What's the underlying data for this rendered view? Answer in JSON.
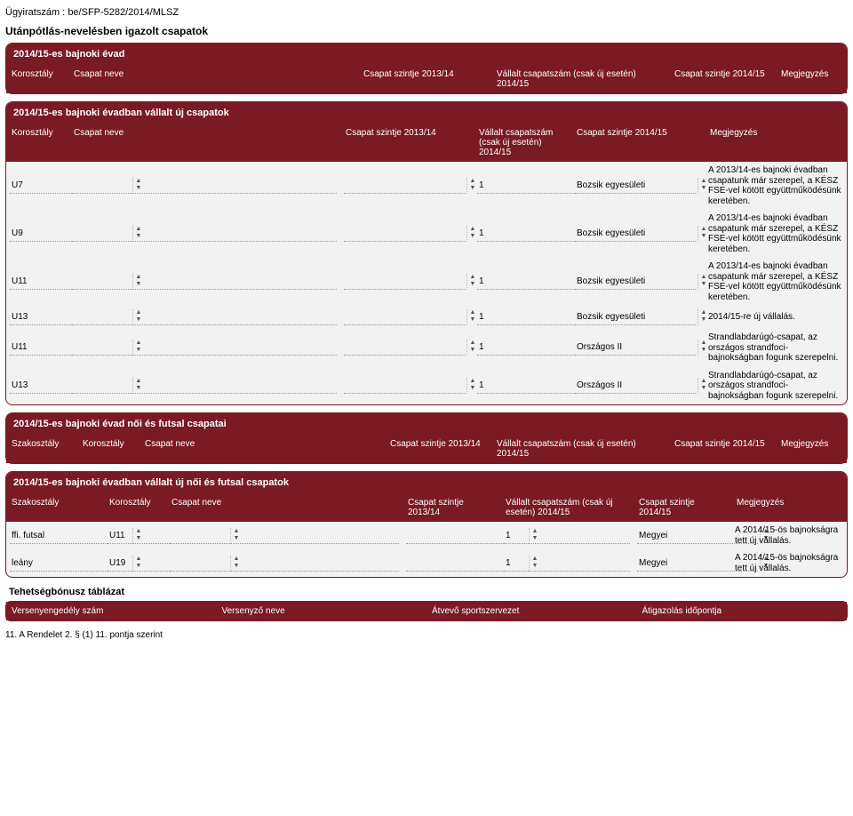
{
  "doc": {
    "case_label": "Ügyiratszám :",
    "case_number": "be/SFP-5282/2014/MLSZ",
    "main_title": "Utánpótlás-nevelésben igazolt csapatok",
    "footnote": "11. A Rendelet 2. § (1) 11. pontja szerint"
  },
  "colors": {
    "header_bg": "#7a1a24",
    "panel_bg": "#f2f2f2",
    "border": "#7a1a24",
    "dotted": "#999999"
  },
  "panel1": {
    "title": "2014/15-es bajnoki évad",
    "cols": {
      "c1": "Korosztály",
      "c2": "Csapat neve",
      "c3": "Csapat szintje 2013/14",
      "c4": "Vállalt csapatszám (csak új esetén) 2014/15",
      "c5": "Csapat szintje 2014/15",
      "c6": "Megjegyzés"
    }
  },
  "panel2": {
    "title": "2014/15-es bajnoki évadban vállalt új csapatok",
    "cols": {
      "c1": "Korosztály",
      "c2": "Csapat neve",
      "c3": "Csapat szintje 2013/14",
      "c4": "Vállalt csapatszám (csak új esetén) 2014/15",
      "c5": "Csapat szintje 2014/15",
      "c6": "Megjegyzés"
    },
    "rows": [
      {
        "age": "U7",
        "name": "",
        "lvl13": "",
        "count": "1",
        "lvl14": "Bozsik egyesületi",
        "note": "A 2013/14-es bajnoki évadban csapatunk már szerepel, a KÉSZ FSE-vel kötött együttműködésünk keretében."
      },
      {
        "age": "U9",
        "name": "",
        "lvl13": "",
        "count": "1",
        "lvl14": "Bozsik egyesületi",
        "note": "A 2013/14-es bajnoki évadban csapatunk már szerepel, a KÉSZ FSE-vel kötött együttműködésünk keretében."
      },
      {
        "age": "U11",
        "name": "",
        "lvl13": "",
        "count": "1",
        "lvl14": "Bozsik egyesületi",
        "note": "A 2013/14-es bajnoki évadban csapatunk már szerepel, a KÉSZ FSE-vel kötött együttműködésünk keretében."
      },
      {
        "age": "U13",
        "name": "",
        "lvl13": "",
        "count": "1",
        "lvl14": "Bozsik egyesületi",
        "note": "2014/15-re új vállalás."
      },
      {
        "age": "U11",
        "name": "",
        "lvl13": "",
        "count": "1",
        "lvl14": "Országos II",
        "note": "Strandlabdarúgó-csapat, az országos strandfoci-bajnokságban fogunk szerepelni."
      },
      {
        "age": "U13",
        "name": "",
        "lvl13": "",
        "count": "1",
        "lvl14": "Országos II",
        "note": "Strandlabdarúgó-csapat, az országos strandfoci-bajnokságban fogunk szerepelni."
      }
    ]
  },
  "panel3": {
    "title": "2014/15-es bajnoki évad női és futsal csapatai",
    "cols": {
      "c0": "Szakosztály",
      "c1": "Korosztály",
      "c2": "Csapat neve",
      "c3": "Csapat szintje 2013/14",
      "c4": "Vállalt csapatszám (csak új esetén) 2014/15",
      "c5": "Csapat szintje 2014/15",
      "c6": "Megjegyzés"
    }
  },
  "panel4": {
    "title": "2014/15-es bajnoki évadban vállalt új női és futsal csapatok",
    "cols": {
      "c0": "Szakosztály",
      "c1": "Korosztály",
      "c2": "Csapat neve",
      "c3": "Csapat szintje 2013/14",
      "c4": "Vállalt csapatszám (csak új esetén) 2014/15",
      "c5": "Csapat szintje 2014/15",
      "c6": "Megjegyzés"
    },
    "rows": [
      {
        "dept": "ffi. futsal",
        "age": "U11",
        "name": "",
        "lvl13": "",
        "count": "1",
        "lvl14": "Megyei",
        "note": "A 2014/15-ös bajnokságra tett új vállalás."
      },
      {
        "dept": "leány",
        "age": "U19",
        "name": "",
        "lvl13": "",
        "count": "1",
        "lvl14": "Megyei",
        "note": "A 2014/15-ös bajnokságra tett új vállalás."
      }
    ]
  },
  "panel5": {
    "title": "Tehetségbónusz táblázat",
    "cols": {
      "c1": "Versenyengedély szám",
      "c2": "Versenyző neve",
      "c3": "Átvevő sportszervezet",
      "c4": "Átigazolás időpontja"
    }
  }
}
